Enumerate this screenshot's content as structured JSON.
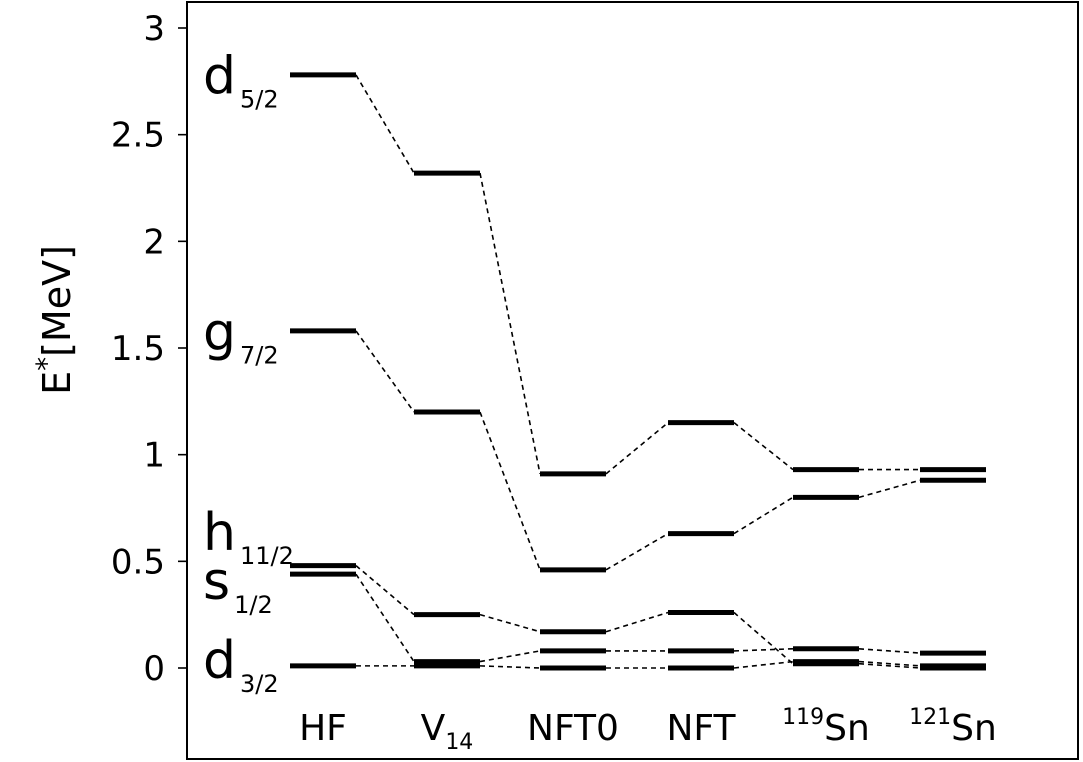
{
  "chart_data": {
    "type": "level-diagram",
    "ylabel_main": "E",
    "ylabel_sup": "*",
    "ylabel_unit": "[MeV]",
    "ylim": [
      0,
      3
    ],
    "yticks": [
      {
        "value": 0,
        "label": "0"
      },
      {
        "value": 0.5,
        "label": "0.5"
      },
      {
        "value": 1,
        "label": "1"
      },
      {
        "value": 1.5,
        "label": "1.5"
      },
      {
        "value": 2,
        "label": "2"
      },
      {
        "value": 2.5,
        "label": "2.5"
      },
      {
        "value": 3,
        "label": "3"
      }
    ],
    "categories": [
      {
        "pre": "",
        "main": "HF",
        "sub": ""
      },
      {
        "pre": "",
        "main": "V",
        "sub": "14"
      },
      {
        "pre": "",
        "main": "NFT0",
        "sub": ""
      },
      {
        "pre": "",
        "main": "NFT",
        "sub": ""
      },
      {
        "pre": "119",
        "main": "Sn",
        "sub": ""
      },
      {
        "pre": "121",
        "main": "Sn",
        "sub": ""
      }
    ],
    "orbitals": [
      {
        "main": "d",
        "sub": "5/2",
        "label_y": 2.75
      },
      {
        "main": "g",
        "sub": "7/2",
        "label_y": 1.55
      },
      {
        "main": "h",
        "sub": "11/2",
        "label_y": 0.61
      },
      {
        "main": "s",
        "sub": "1/2",
        "label_y": 0.38
      },
      {
        "main": "d",
        "sub": "3/2",
        "label_y": 0.01
      }
    ],
    "series": [
      {
        "orbital": "d5/2",
        "values": [
          2.78,
          2.32,
          0.91,
          1.15,
          0.93,
          0.93
        ]
      },
      {
        "orbital": "g7/2",
        "values": [
          1.58,
          1.2,
          0.46,
          0.63,
          0.8,
          0.88
        ]
      },
      {
        "orbital": "h11/2",
        "values": [
          0.48,
          0.25,
          0.17,
          0.26,
          0.02,
          0.0
        ]
      },
      {
        "orbital": "s1/2",
        "values": [
          0.44,
          0.03,
          0.08,
          0.08,
          0.09,
          0.07
        ]
      },
      {
        "orbital": "d3/2",
        "values": [
          0.01,
          0.01,
          0.0,
          0.0,
          0.03,
          0.01
        ]
      }
    ]
  }
}
